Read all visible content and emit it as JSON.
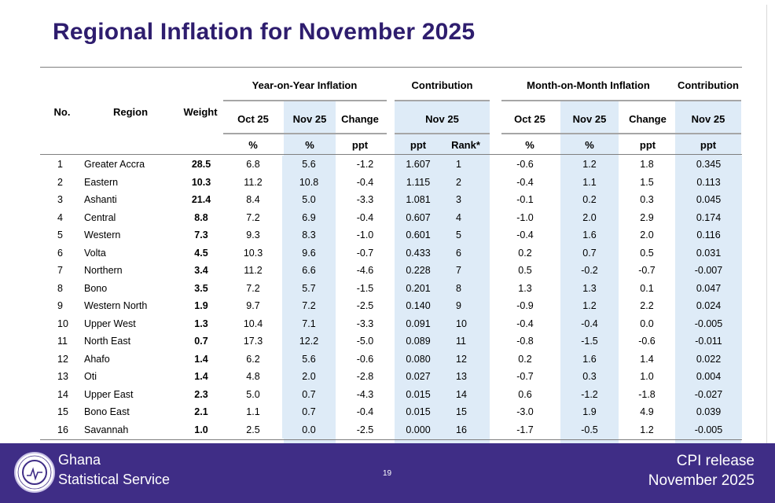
{
  "title": "Regional Inflation for November 2025",
  "header": {
    "no": "No.",
    "region": "Region",
    "weight": "Weight",
    "yoy_group": "Year-on-Year Inflation",
    "yoy_contrib_group": "Contribution",
    "mom_group": "Month-on-Month Inflation",
    "mom_contrib_group": "Contribution",
    "yoy_oct": "Oct 25",
    "yoy_nov": "Nov 25",
    "yoy_change": "Change",
    "yoy_contrib_nov": "Nov 25",
    "mom_oct": "Oct 25",
    "mom_nov": "Nov 25",
    "mom_change": "Change",
    "mom_contrib_nov": "Nov 25",
    "unit_yoy_oct": "%",
    "unit_yoy_nov": "%",
    "unit_yoy_change": "ppt",
    "unit_contrib": "ppt",
    "unit_rank": "Rank*",
    "unit_mom_oct": "%",
    "unit_mom_nov": "%",
    "unit_mom_change": "ppt",
    "unit_mom_contrib": "ppt"
  },
  "rows": [
    {
      "no": "1",
      "region": "Greater Accra",
      "weight": "28.5",
      "yoy_oct": "6.8",
      "yoy_nov": "5.6",
      "yoy_change": "-1.2",
      "contrib": "1.607",
      "rank": "1",
      "mom_oct": "-0.6",
      "mom_nov": "1.2",
      "mom_change": "1.8",
      "mom_contrib": "0.345"
    },
    {
      "no": "2",
      "region": "Eastern",
      "weight": "10.3",
      "yoy_oct": "11.2",
      "yoy_nov": "10.8",
      "yoy_change": "-0.4",
      "contrib": "1.115",
      "rank": "2",
      "mom_oct": "-0.4",
      "mom_nov": "1.1",
      "mom_change": "1.5",
      "mom_contrib": "0.113"
    },
    {
      "no": "3",
      "region": "Ashanti",
      "weight": "21.4",
      "yoy_oct": "8.4",
      "yoy_nov": "5.0",
      "yoy_change": "-3.3",
      "contrib": "1.081",
      "rank": "3",
      "mom_oct": "-0.1",
      "mom_nov": "0.2",
      "mom_change": "0.3",
      "mom_contrib": "0.045"
    },
    {
      "no": "4",
      "region": "Central",
      "weight": "8.8",
      "yoy_oct": "7.2",
      "yoy_nov": "6.9",
      "yoy_change": "-0.4",
      "contrib": "0.607",
      "rank": "4",
      "mom_oct": "-1.0",
      "mom_nov": "2.0",
      "mom_change": "2.9",
      "mom_contrib": "0.174"
    },
    {
      "no": "5",
      "region": "Western",
      "weight": "7.3",
      "yoy_oct": "9.3",
      "yoy_nov": "8.3",
      "yoy_change": "-1.0",
      "contrib": "0.601",
      "rank": "5",
      "mom_oct": "-0.4",
      "mom_nov": "1.6",
      "mom_change": "2.0",
      "mom_contrib": "0.116"
    },
    {
      "no": "6",
      "region": "Volta",
      "weight": "4.5",
      "yoy_oct": "10.3",
      "yoy_nov": "9.6",
      "yoy_change": "-0.7",
      "contrib": "0.433",
      "rank": "6",
      "mom_oct": "0.2",
      "mom_nov": "0.7",
      "mom_change": "0.5",
      "mom_contrib": "0.031"
    },
    {
      "no": "7",
      "region": "Northern",
      "weight": "3.4",
      "yoy_oct": "11.2",
      "yoy_nov": "6.6",
      "yoy_change": "-4.6",
      "contrib": "0.228",
      "rank": "7",
      "mom_oct": "0.5",
      "mom_nov": "-0.2",
      "mom_change": "-0.7",
      "mom_contrib": "-0.007"
    },
    {
      "no": "8",
      "region": "Bono",
      "weight": "3.5",
      "yoy_oct": "7.2",
      "yoy_nov": "5.7",
      "yoy_change": "-1.5",
      "contrib": "0.201",
      "rank": "8",
      "mom_oct": "1.3",
      "mom_nov": "1.3",
      "mom_change": "0.1",
      "mom_contrib": "0.047"
    },
    {
      "no": "9",
      "region": "Western North",
      "weight": "1.9",
      "yoy_oct": "9.7",
      "yoy_nov": "7.2",
      "yoy_change": "-2.5",
      "contrib": "0.140",
      "rank": "9",
      "mom_oct": "-0.9",
      "mom_nov": "1.2",
      "mom_change": "2.2",
      "mom_contrib": "0.024"
    },
    {
      "no": "10",
      "region": "Upper West",
      "weight": "1.3",
      "yoy_oct": "10.4",
      "yoy_nov": "7.1",
      "yoy_change": "-3.3",
      "contrib": "0.091",
      "rank": "10",
      "mom_oct": "-0.4",
      "mom_nov": "-0.4",
      "mom_change": "0.0",
      "mom_contrib": "-0.005"
    },
    {
      "no": "11",
      "region": "North East",
      "weight": "0.7",
      "yoy_oct": "17.3",
      "yoy_nov": "12.2",
      "yoy_change": "-5.0",
      "contrib": "0.089",
      "rank": "11",
      "mom_oct": "-0.8",
      "mom_nov": "-1.5",
      "mom_change": "-0.6",
      "mom_contrib": "-0.011"
    },
    {
      "no": "12",
      "region": "Ahafo",
      "weight": "1.4",
      "yoy_oct": "6.2",
      "yoy_nov": "5.6",
      "yoy_change": "-0.6",
      "contrib": "0.080",
      "rank": "12",
      "mom_oct": "0.2",
      "mom_nov": "1.6",
      "mom_change": "1.4",
      "mom_contrib": "0.022"
    },
    {
      "no": "13",
      "region": "Oti",
      "weight": "1.4",
      "yoy_oct": "4.8",
      "yoy_nov": "2.0",
      "yoy_change": "-2.8",
      "contrib": "0.027",
      "rank": "13",
      "mom_oct": "-0.7",
      "mom_nov": "0.3",
      "mom_change": "1.0",
      "mom_contrib": "0.004"
    },
    {
      "no": "14",
      "region": "Upper East",
      "weight": "2.3",
      "yoy_oct": "5.0",
      "yoy_nov": "0.7",
      "yoy_change": "-4.3",
      "contrib": "0.015",
      "rank": "14",
      "mom_oct": "0.6",
      "mom_nov": "-1.2",
      "mom_change": "-1.8",
      "mom_contrib": "-0.027"
    },
    {
      "no": "15",
      "region": "Bono East",
      "weight": "2.1",
      "yoy_oct": "1.1",
      "yoy_nov": "0.7",
      "yoy_change": "-0.4",
      "contrib": "0.015",
      "rank": "15",
      "mom_oct": "-3.0",
      "mom_nov": "1.9",
      "mom_change": "4.9",
      "mom_contrib": "0.039"
    },
    {
      "no": "16",
      "region": "Savannah",
      "weight": "1.0",
      "yoy_oct": "2.5",
      "yoy_nov": "0.0",
      "yoy_change": "-2.5",
      "contrib": "0.000",
      "rank": "16",
      "mom_oct": "-1.7",
      "mom_nov": "-0.5",
      "mom_change": "1.2",
      "mom_contrib": "-0.005"
    }
  ],
  "footer": {
    "org_line1": "Ghana",
    "org_line2": "Statistical Service",
    "page_number": "19",
    "release_line1": "CPI release",
    "release_line2": "November  2025",
    "logo_icon": "gss-emblem-icon",
    "logo_ring_text": "STATISTICAL SERVICE",
    "logo_country_text": "GHANA"
  },
  "colors": {
    "title": "#2e1d6e",
    "footer_bg": "#3f2d86",
    "highlight_band": "#deebf7"
  }
}
